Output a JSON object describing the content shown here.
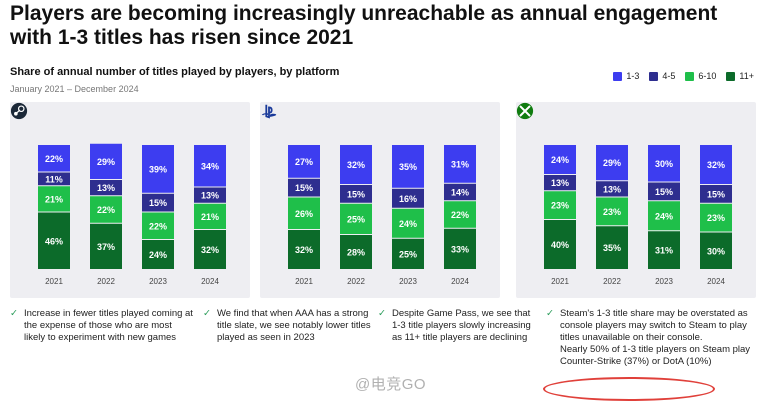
{
  "headline": "Players are becoming increasingly unreachable as annual engagement with 1-3 titles has risen since 2021",
  "subtitle": "Share of annual number of titles played by players, by platform",
  "date_range": "January 2021 – December 2024",
  "colors": {
    "s13": "#3d3df0",
    "s45": "#2e2e8f",
    "s610": "#1fbf4a",
    "s11": "#0c6b2a",
    "panel": "#eeeef2"
  },
  "legend": [
    "1-3",
    "4-5",
    "6-10",
    "11+"
  ],
  "chart_data": [
    {
      "type": "bar",
      "stacked": true,
      "platform": "Steam",
      "logo": "steam-logo",
      "categories": [
        "2021",
        "2022",
        "2023",
        "2024"
      ],
      "series": [
        {
          "name": "11+",
          "values": [
            46,
            37,
            24,
            32
          ]
        },
        {
          "name": "6-10",
          "values": [
            21,
            22,
            22,
            21
          ]
        },
        {
          "name": "4-5",
          "values": [
            11,
            13,
            15,
            13
          ]
        },
        {
          "name": "1-3",
          "values": [
            22,
            29,
            39,
            34
          ]
        }
      ],
      "ylim": [
        0,
        100
      ]
    },
    {
      "type": "bar",
      "stacked": true,
      "platform": "PlayStation",
      "logo": "playstation-logo",
      "categories": [
        "2021",
        "2022",
        "2023",
        "2024"
      ],
      "series": [
        {
          "name": "11+",
          "values": [
            32,
            28,
            25,
            33
          ]
        },
        {
          "name": "6-10",
          "values": [
            26,
            25,
            24,
            22
          ]
        },
        {
          "name": "4-5",
          "values": [
            15,
            15,
            16,
            14
          ]
        },
        {
          "name": "1-3",
          "values": [
            27,
            32,
            35,
            31
          ]
        }
      ],
      "ylim": [
        0,
        100
      ]
    },
    {
      "type": "bar",
      "stacked": true,
      "platform": "Xbox",
      "logo": "xbox-logo",
      "categories": [
        "2021",
        "2022",
        "2023",
        "2024"
      ],
      "series": [
        {
          "name": "11+",
          "values": [
            40,
            35,
            31,
            30
          ]
        },
        {
          "name": "6-10",
          "values": [
            23,
            23,
            24,
            23
          ]
        },
        {
          "name": "4-5",
          "values": [
            13,
            13,
            15,
            15
          ]
        },
        {
          "name": "1-3",
          "values": [
            24,
            29,
            30,
            32
          ]
        }
      ],
      "ylim": [
        0,
        100
      ]
    }
  ],
  "notes": [
    {
      "check": "✓",
      "text": "Increase in fewer titles played coming at the expense of those who are most likely to experiment with new games"
    },
    {
      "check": "✓",
      "text": "We find that when AAA has a strong title slate, we see notably lower titles played as seen in 2023"
    },
    {
      "check": "✓",
      "text": "Despite Game Pass, we see that 1-3 title players slowly increasing as 11+ title players are declining"
    },
    {
      "check": "✓",
      "text": "Steam's 1-3 title share may be overstated as console players may switch to Steam to play titles unavailable on their console.",
      "extra": "Nearly 50% of 1-3 title players on Steam play Counter-Strike (37%) or DotA (10%)"
    }
  ],
  "watermark": "@电竞GO"
}
